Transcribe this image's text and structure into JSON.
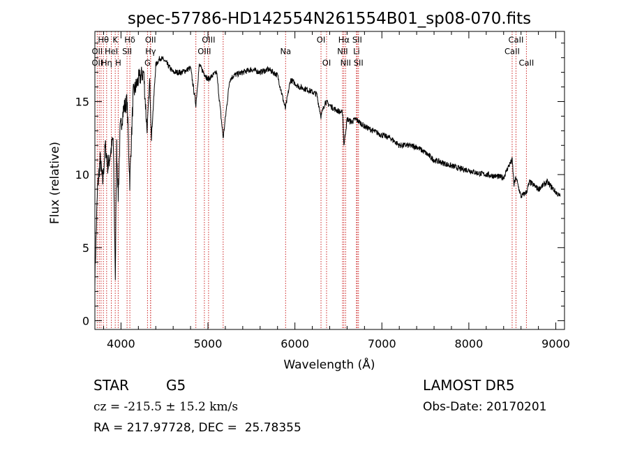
{
  "chart_data": {
    "type": "line",
    "title": "spec-57786-HD142554N261554B01_sp08-070.fits",
    "xlabel": "Wavelength (Å)",
    "ylabel": "Flux (relative)",
    "xlim": [
      3700,
      9100
    ],
    "ylim": [
      -0.6,
      19.8
    ],
    "x_ticks": [
      "4000",
      "5000",
      "6000",
      "7000",
      "8000",
      "9000"
    ],
    "x_tick_values": [
      4000,
      5000,
      6000,
      7000,
      8000,
      9000
    ],
    "y_ticks": [
      "0",
      "5",
      "10",
      "15"
    ],
    "y_tick_values": [
      0,
      5,
      10,
      15
    ],
    "grid": false,
    "line_color": "#000000",
    "marker_color": "#cc2222",
    "series": [
      {
        "x": [
          3700,
          3730,
          3760,
          3790,
          3820,
          3850,
          3880,
          3910,
          3935,
          3950,
          3968,
          3990,
          4030,
          4070,
          4101,
          4140,
          4200,
          4260,
          4300,
          4330,
          4350,
          4400,
          4450,
          4500,
          4600,
          4700,
          4800,
          4861,
          4900,
          4950,
          5000,
          5100,
          5175,
          5250,
          5300,
          5400,
          5500,
          5600,
          5700,
          5800,
          5890,
          5950,
          6050,
          6150,
          6250,
          6300,
          6350,
          6450,
          6550,
          6563,
          6600,
          6650,
          6700,
          6800,
          6900,
          7000,
          7100,
          7200,
          7300,
          7400,
          7500,
          7600,
          7700,
          7800,
          7900,
          8000,
          8100,
          8200,
          8300,
          8400,
          8450,
          8498,
          8520,
          8542,
          8600,
          8662,
          8700,
          8800,
          8900,
          9000,
          9050
        ],
        "y": [
          3.0,
          9.0,
          11.0,
          9.5,
          12.0,
          10.5,
          11.5,
          12.5,
          3.0,
          12.0,
          8.5,
          13.0,
          14.5,
          15.0,
          9.5,
          15.5,
          16.5,
          17.0,
          13.0,
          16.5,
          12.5,
          17.5,
          18.0,
          17.8,
          17.0,
          17.0,
          17.3,
          14.8,
          17.5,
          17.0,
          16.5,
          17.0,
          12.5,
          16.5,
          16.8,
          17.0,
          17.2,
          17.0,
          17.2,
          16.8,
          14.5,
          16.5,
          16.0,
          15.8,
          15.5,
          14.0,
          15.0,
          14.5,
          14.2,
          12.0,
          13.8,
          13.6,
          13.8,
          13.3,
          13.0,
          12.7,
          12.5,
          12.0,
          12.0,
          11.9,
          11.5,
          11.0,
          10.8,
          10.6,
          10.4,
          10.3,
          10.1,
          10.0,
          9.9,
          9.8,
          10.5,
          11.0,
          9.3,
          9.8,
          8.5,
          8.8,
          9.5,
          9.0,
          9.5,
          8.8,
          8.5
        ]
      }
    ],
    "lines": [
      {
        "label": "Hθ",
        "wl": 3798,
        "row": 0
      },
      {
        "label": "K",
        "wl": 3934,
        "row": 0
      },
      {
        "label": "Hδ",
        "wl": 4102,
        "row": 0
      },
      {
        "label": "OII",
        "wl": 4340,
        "row": 0
      },
      {
        "label": "OIII",
        "wl": 5007,
        "row": 0
      },
      {
        "label": "OI",
        "wl": 6300,
        "row": 0
      },
      {
        "label": "Hα",
        "wl": 6563,
        "row": 0
      },
      {
        "label": "SII",
        "wl": 6716,
        "row": 0
      },
      {
        "label": "CaII",
        "wl": 8542,
        "row": 0
      },
      {
        "label": "OII",
        "wl": 3727,
        "row": 1
      },
      {
        "label": "HeI",
        "wl": 3889,
        "row": 1
      },
      {
        "label": "SII",
        "wl": 4070,
        "row": 1
      },
      {
        "label": "Hγ",
        "wl": 4341,
        "row": 1
      },
      {
        "label": "OIII",
        "wl": 4959,
        "row": 1
      },
      {
        "label": "Na",
        "wl": 5893,
        "row": 1
      },
      {
        "label": "NII",
        "wl": 6548,
        "row": 1
      },
      {
        "label": "Li",
        "wl": 6708,
        "row": 1
      },
      {
        "label": "CaII",
        "wl": 8498,
        "row": 1
      },
      {
        "label": "OII",
        "wl": 3727,
        "row": 2
      },
      {
        "label": "Hη",
        "wl": 3835,
        "row": 2
      },
      {
        "label": "H",
        "wl": 3968,
        "row": 2
      },
      {
        "label": "G",
        "wl": 4305,
        "row": 2
      },
      {
        "label": "OI",
        "wl": 6364,
        "row": 2
      },
      {
        "label": "NII",
        "wl": 6583,
        "row": 2
      },
      {
        "label": "SII",
        "wl": 6731,
        "row": 2
      },
      {
        "label": "CaII",
        "wl": 8662,
        "row": 2
      }
    ],
    "extra_markers": [
      3750,
      3771,
      3889,
      3934,
      4102,
      4861,
      5175
    ]
  },
  "info": {
    "type_label": "STAR",
    "subclass": "G5",
    "survey": "LAMOST DR5",
    "cz": "cz = -215.5 ± 15.2 km/s",
    "obs_date": "Obs-Date: 20170201",
    "coords": "RA = 217.97728, DEC =  25.78355"
  }
}
